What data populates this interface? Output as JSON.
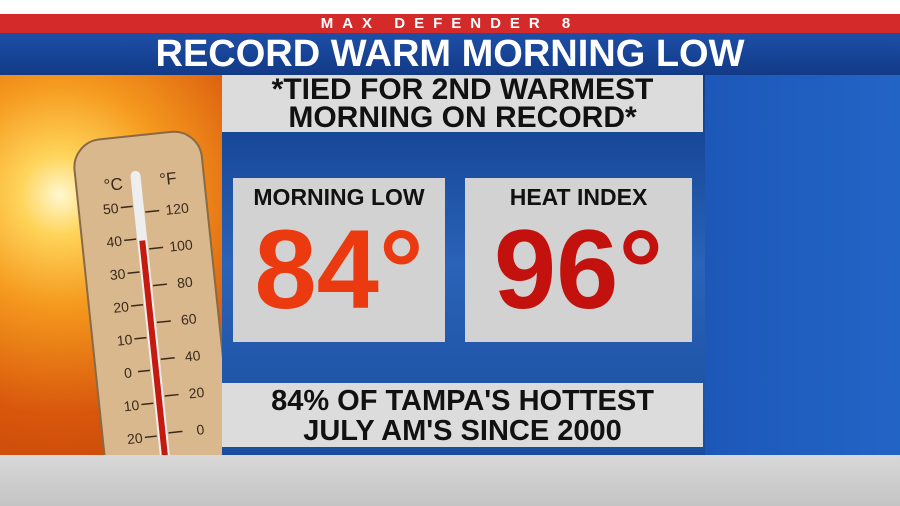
{
  "header": {
    "brand": "MAX DEFENDER 8",
    "title": "RECORD WARM MORNING LOW"
  },
  "note": {
    "lines": [
      "*TIED FOR 2ND WARMEST",
      "MORNING ON RECORD*"
    ]
  },
  "stats": [
    {
      "label": "MORNING LOW",
      "value": "84°"
    },
    {
      "label": "HEAT INDEX",
      "value": "96°"
    }
  ],
  "footer": {
    "lines": [
      "84% OF TAMPA'S HOTTEST",
      "JULY AM'S SINCE 2000"
    ]
  },
  "thermometer": {
    "celsius_unit": "°C",
    "fahrenheit_unit": "°F",
    "celsius": [
      "50",
      "40",
      "30",
      "20",
      "10",
      "0",
      "10",
      "20"
    ],
    "fahrenheit": [
      "120",
      "100",
      "80",
      "60",
      "40",
      "20",
      "0"
    ]
  }
}
